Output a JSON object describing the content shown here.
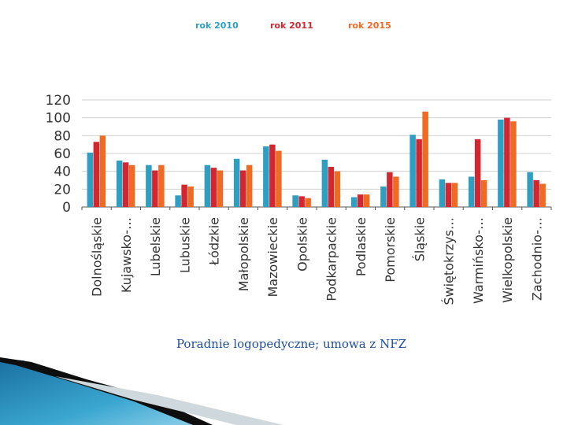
{
  "chart_data": {
    "type": "bar",
    "title": "",
    "xlabel": "",
    "ylabel": "",
    "ylim": [
      0,
      120
    ],
    "yticks": [
      0,
      20,
      40,
      60,
      80,
      100,
      120
    ],
    "grid": true,
    "legend_position": "top",
    "categories": [
      "Dolnośląskie",
      "Kujawsko-…",
      "Lubelskie",
      "Lubuskie",
      "Łódzkie",
      "Małopolskie",
      "Mazowieckie",
      "Opolskie",
      "Podkarpackie",
      "Podlaskie",
      "Pomorskie",
      "Śląskie",
      "Świętokrzys…",
      "Warmińsko-…",
      "Wielkopolskie",
      "Zachodnio-…"
    ],
    "series": [
      {
        "name": "rok 2010",
        "color": "#2e9fc0",
        "values": [
          61,
          52,
          47,
          13,
          47,
          54,
          68,
          13,
          53,
          11,
          23,
          81,
          31,
          34,
          98,
          39
        ]
      },
      {
        "name": "rok 2011",
        "color": "#d22630",
        "values": [
          73,
          50,
          41,
          25,
          44,
          41,
          70,
          12,
          45,
          14,
          39,
          76,
          27,
          76,
          100,
          30
        ]
      },
      {
        "name": "rok 2015",
        "color": "#ef6a24",
        "values": [
          80,
          47,
          47,
          23,
          41,
          47,
          63,
          10,
          40,
          14,
          34,
          107,
          27,
          30,
          96,
          26
        ]
      }
    ]
  },
  "caption": "Poradnie logopedyczne; umowa z NFZ"
}
